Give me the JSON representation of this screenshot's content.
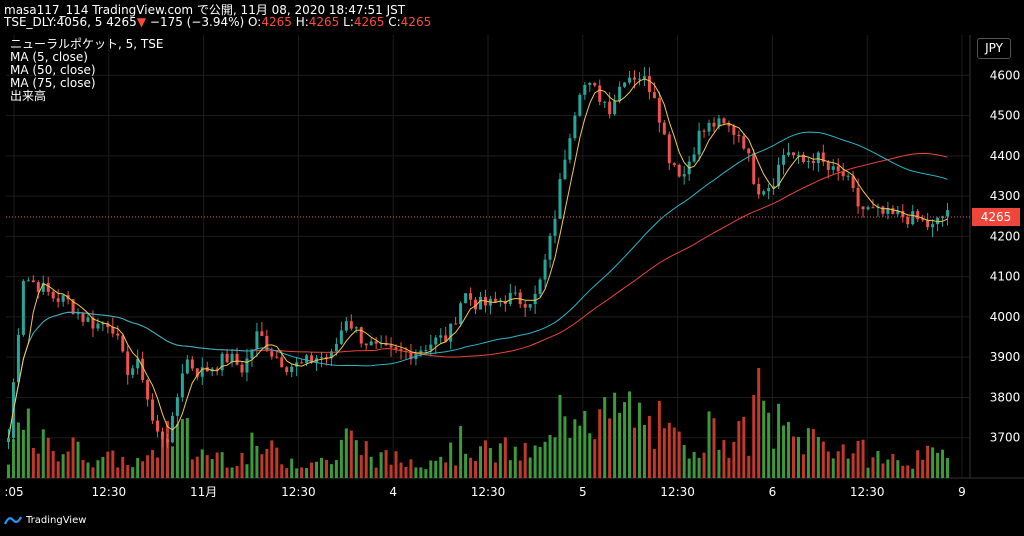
{
  "header": {
    "title_line": "masa117_114 TradingView.com で公開, 11月 08, 2020 18:47:51 JST",
    "symbol": "TSE_DLY:4056, 5",
    "last": "4265",
    "change_arrow": "▼",
    "change": "−175 (−3.94%)",
    "o_label": "O:",
    "o": "4265",
    "h_label": "H:",
    "h": "4265",
    "l_label": "L:",
    "l": "4265",
    "c_label": "C:",
    "c": "4265"
  },
  "legend": {
    "series_title": "ニューラルポケット, 5, TSE",
    "ma5": "MA (5, close)",
    "ma50": "MA (50, close)",
    "ma75": "MA (75, close)",
    "volume": "出来高"
  },
  "currency": "JPY",
  "price_badge": "4265",
  "footer": {
    "brand": "TradingView"
  },
  "colors": {
    "up": "#26a69a",
    "down": "#ef5350",
    "ma5": "#f2c94c",
    "ma50": "#2bb5c5",
    "ma75": "#e8443a",
    "vol_up": "#3c9a3c",
    "vol_down": "#c0392b"
  },
  "chart_data": {
    "type": "candlestick",
    "y_ticks": [
      "4600",
      "4500",
      "4400",
      "4300",
      "4200",
      "4100",
      "4000",
      "3900",
      "3800",
      "3700"
    ],
    "x_ticks": [
      ":05",
      "12:30",
      "11月",
      "12:30",
      "4",
      "12:30",
      "5",
      "12:30",
      "6",
      "12:30",
      "9"
    ],
    "ylim": [
      3600,
      4700
    ],
    "last_price": 4265,
    "close_path": [
      3700,
      4100,
      4080,
      4050,
      4040,
      4000,
      3980,
      3990,
      3870,
      3880,
      3710,
      3700,
      3900,
      3860,
      3880,
      3900,
      3870,
      3960,
      3910,
      3880,
      3880,
      3900,
      3900,
      4000,
      3950,
      3920,
      3910,
      3910,
      3920,
      3940,
      3950,
      4060,
      4030,
      4030,
      4050,
      4040,
      4050,
      4200,
      4420,
      4580,
      4560,
      4520,
      4600,
      4600,
      4560,
      4400,
      4350,
      4450,
      4480,
      4470,
      4450,
      4320,
      4330,
      4420,
      4380,
      4400,
      4360,
      4350,
      4270,
      4260,
      4250,
      4250,
      4240,
      4220,
      4265
    ],
    "volume_profile": [
      30,
      55,
      40,
      35,
      38,
      30,
      25,
      22,
      20,
      18,
      40,
      60,
      50,
      30,
      28,
      26,
      25,
      35,
      30,
      22,
      20,
      20,
      22,
      45,
      35,
      25,
      22,
      20,
      22,
      28,
      30,
      40,
      35,
      30,
      32,
      28,
      30,
      40,
      75,
      95,
      80,
      70,
      78,
      70,
      60,
      45,
      40,
      50,
      55,
      50,
      48,
      90,
      60,
      52,
      45,
      48,
      40,
      35,
      30,
      25,
      22,
      20,
      22,
      25,
      28
    ]
  }
}
